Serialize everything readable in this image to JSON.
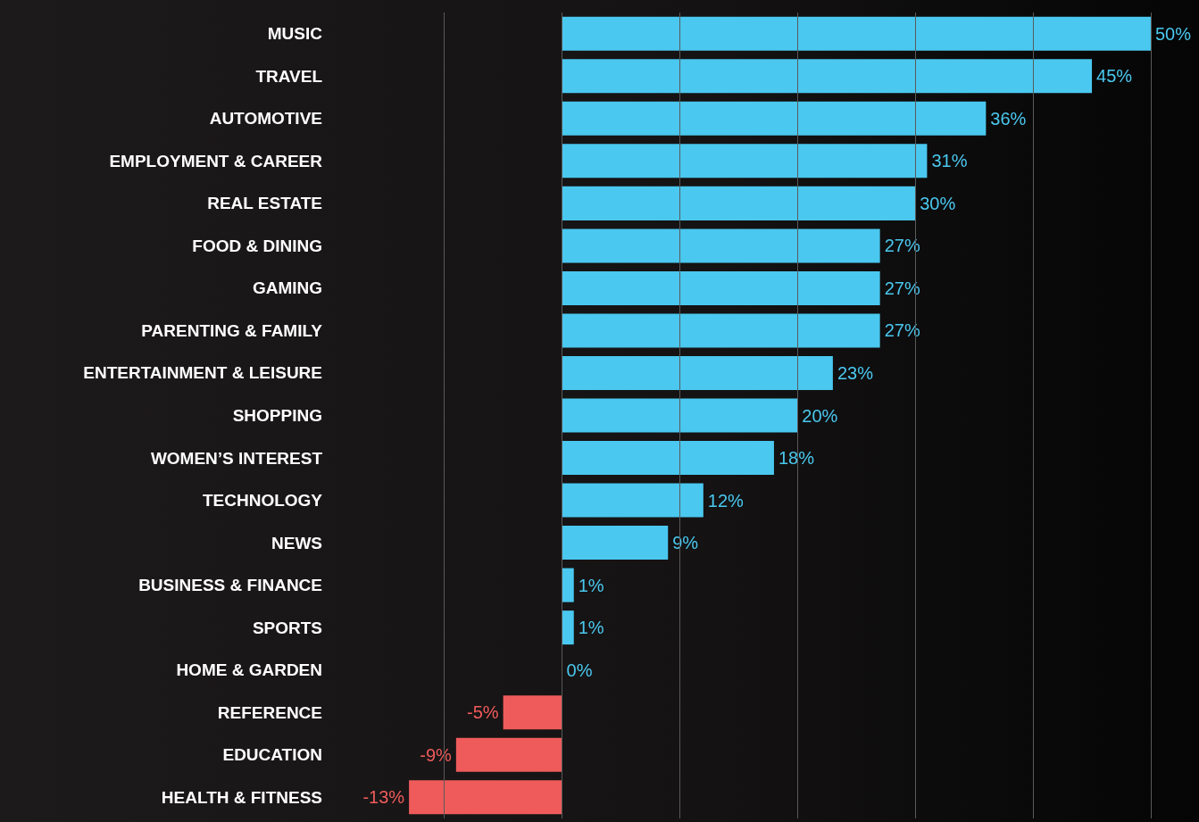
{
  "chart_data": {
    "type": "bar",
    "orientation": "horizontal",
    "categories": [
      "MUSIC",
      "TRAVEL",
      "AUTOMOTIVE",
      "EMPLOYMENT & CAREER",
      "REAL ESTATE",
      "FOOD & DINING",
      "GAMING",
      "PARENTING & FAMILY",
      "ENTERTAINMENT & LEISURE",
      "SHOPPING",
      "WOMEN’S INTEREST",
      "TECHNOLOGY",
      "NEWS",
      "BUSINESS & FINANCE",
      "SPORTS",
      "HOME & GARDEN",
      "REFERENCE",
      "EDUCATION",
      "HEALTH & FITNESS"
    ],
    "values": [
      50,
      45,
      36,
      31,
      30,
      27,
      27,
      27,
      23,
      20,
      18,
      12,
      9,
      1,
      1,
      0,
      -5,
      -9,
      -13
    ],
    "value_labels": [
      "50%",
      "45%",
      "36%",
      "31%",
      "30%",
      "27%",
      "27%",
      "27%",
      "23%",
      "20%",
      "18%",
      "12%",
      "9%",
      "1%",
      "1%",
      "0%",
      "-5%",
      "-9%",
      "-13%"
    ],
    "colors": [
      "#4ac8ef",
      "#4ac8ef",
      "#4ac8ef",
      "#4ac8ef",
      "#4ac8ef",
      "#4ac8ef",
      "#4ac8ef",
      "#4ac8ef",
      "#4ac8ef",
      "#4ac8ef",
      "#4ac8ef",
      "#4ac8ef",
      "#4ac8ef",
      "#4ac8ef",
      "#4ac8ef",
      "#4ac8ef",
      "#ef5b5b",
      "#ef5b5b",
      "#ef5b5b"
    ],
    "xticks": [
      {
        "value": -10,
        "label": null
      },
      {
        "value": 0,
        "label": null
      },
      {
        "value": 10,
        "label": null
      },
      {
        "value": 20,
        "label": null
      },
      {
        "value": 30,
        "label": null
      },
      {
        "value": 40,
        "label": null
      },
      {
        "value": 50,
        "label": null
      }
    ],
    "grid": "x",
    "tick_labels": "y"
  }
}
